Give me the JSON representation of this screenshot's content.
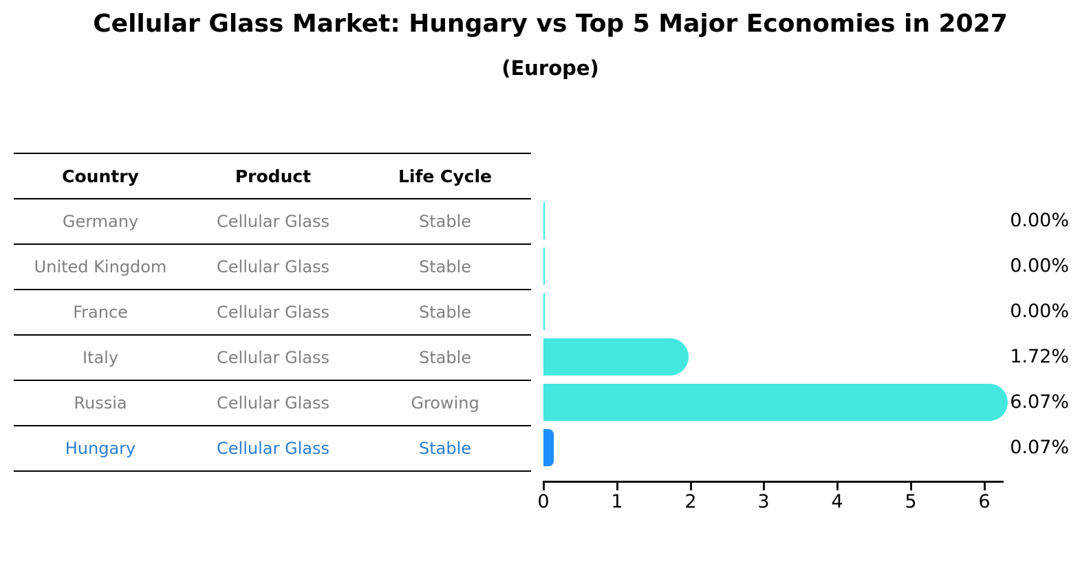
{
  "colors": {
    "bar_primary": "#44E6E0",
    "bar_highlight": "#1E8FFF",
    "highlight_text": "#2A7DD2",
    "body_text": "#808080",
    "header_text": "#000000"
  },
  "table": {
    "headers": [
      "Country",
      "Product",
      "Life Cycle"
    ],
    "rows": [
      [
        "Germany",
        "Cellular Glass",
        "Stable"
      ],
      [
        "United Kingdom",
        "Cellular Glass",
        "Stable"
      ],
      [
        "France",
        "Cellular Glass",
        "Stable"
      ],
      [
        "Italy",
        "Cellular Glass",
        "Stable"
      ],
      [
        "Russia",
        "Cellular Glass",
        "Growing"
      ],
      [
        "Hungary",
        "Cellular Glass",
        "Stable"
      ]
    ],
    "highlight_row": "Hungary"
  },
  "chart_data": {
    "type": "bar",
    "orientation": "horizontal",
    "title": "Cellular Glass Market: Hungary vs Top 5 Major Economies in 2027",
    "subtitle": "(Europe)",
    "categories": [
      "Germany",
      "United Kingdom",
      "France",
      "Italy",
      "Russia",
      "Hungary"
    ],
    "values": [
      0.0,
      0.0,
      0.0,
      1.72,
      6.07,
      0.07
    ],
    "value_labels": [
      "0.00%",
      "0.00%",
      "0.00%",
      "1.72%",
      "6.07%",
      "0.07%"
    ],
    "highlight_index": 5,
    "xlabel": "",
    "ylabel": "",
    "xlim": [
      0,
      6.3
    ],
    "xticks": [
      0,
      1,
      2,
      3,
      4,
      5,
      6
    ],
    "xtick_labels": [
      "0",
      "1",
      "2",
      "3",
      "4",
      "5",
      "6"
    ],
    "grid": false,
    "legend": false
  }
}
